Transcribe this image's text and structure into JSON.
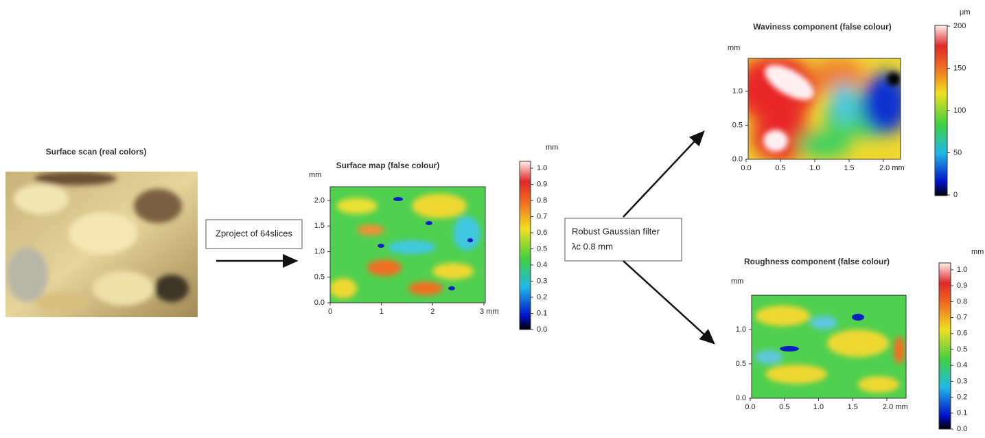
{
  "surface_scan": {
    "title": "Surface scan (real colors)"
  },
  "step_1": {
    "label": "Zproject of 64slices"
  },
  "surface_map": {
    "title": "Surface map (false colour)",
    "y_unit": "mm",
    "y_ticks": [
      "0.0",
      "0.5",
      "1.0",
      "1.5",
      "2.0"
    ],
    "x_ticks": [
      "0",
      "1",
      "2",
      "3 mm"
    ],
    "colorbar_unit": "mm",
    "colorbar_ticks": [
      "0.0",
      "0.1",
      "0.2",
      "0.3",
      "0.4",
      "0.5",
      "0.6",
      "0.7",
      "0.8",
      "0.9",
      "1.0"
    ]
  },
  "step_2": {
    "line_1": "Robust Gaussian filter",
    "line_2": "λc 0.8 mm"
  },
  "waviness": {
    "title": "Waviness component (false colour)",
    "y_unit": "mm",
    "y_ticks": [
      "0.0",
      "0.5",
      "1.0"
    ],
    "x_ticks": [
      "0.0",
      "0.5",
      "1.0",
      "1.5",
      "2.0 mm"
    ],
    "colorbar_unit": "μm",
    "colorbar_ticks": [
      "0",
      "50",
      "100",
      "150",
      "200"
    ]
  },
  "roughness": {
    "title": "Roughness component (false colour)",
    "y_unit": "mm",
    "y_ticks": [
      "0.0",
      "0.5",
      "1.0"
    ],
    "x_ticks": [
      "0.0",
      "0.5",
      "1.0",
      "1.5",
      "2.0 mm"
    ],
    "colorbar_unit": "mm",
    "colorbar_ticks": [
      "0.0",
      "0.1",
      "0.2",
      "0.3",
      "0.4",
      "0.5",
      "0.6",
      "0.7",
      "0.8",
      "0.9",
      "1.0"
    ]
  }
}
